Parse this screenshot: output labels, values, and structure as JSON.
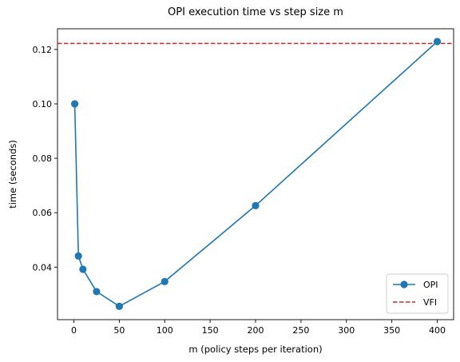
{
  "chart_data": {
    "type": "line",
    "title": "OPI execution time vs step size m",
    "xlabel": "m (policy steps per iteration)",
    "ylabel": "time (seconds)",
    "xlim": [
      -18,
      418
    ],
    "ylim": [
      0.0207,
      0.1276
    ],
    "xticks": [
      0,
      50,
      100,
      150,
      200,
      250,
      300,
      350,
      400
    ],
    "yticks": [
      0.04,
      0.06,
      0.08,
      0.1,
      0.12
    ],
    "xtick_labels": [
      "0",
      "50",
      "100",
      "150",
      "200",
      "250",
      "300",
      "350",
      "400"
    ],
    "ytick_labels": [
      "0.04",
      "0.06",
      "0.08",
      "0.10",
      "0.12"
    ],
    "grid": false,
    "legend_position": "lower-right",
    "series": [
      {
        "name": "OPI",
        "style": "line-marker",
        "color": "#1f77b4",
        "x": [
          1,
          5,
          10,
          25,
          50,
          100,
          200,
          400
        ],
        "y": [
          0.1,
          0.0441,
          0.0392,
          0.031,
          0.0256,
          0.0347,
          0.0626,
          0.1229
        ]
      },
      {
        "name": "VFI",
        "style": "dashed-hline",
        "color": "#d62728",
        "y": 0.1222
      }
    ]
  }
}
